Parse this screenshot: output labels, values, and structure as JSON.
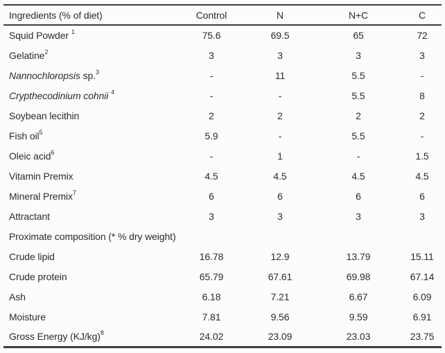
{
  "table": {
    "header": {
      "ingredients": "Ingredients (% of diet)",
      "columns": [
        "Control",
        "N",
        "N+C",
        "C"
      ]
    },
    "rows": [
      {
        "label": [
          {
            "text": "Squid Powder ",
            "style": "normal"
          },
          {
            "text": "1",
            "style": "sup"
          }
        ],
        "values": [
          "75.6",
          "69.5",
          "65",
          "72"
        ]
      },
      {
        "label": [
          {
            "text": "Gelatine",
            "style": "normal"
          },
          {
            "text": "2",
            "style": "sup"
          }
        ],
        "values": [
          "3",
          "3",
          "3",
          "3"
        ]
      },
      {
        "label": [
          {
            "text": "Nannochloropsis",
            "style": "italic"
          },
          {
            "text": " sp.",
            "style": "normal"
          },
          {
            "text": "3",
            "style": "sup"
          }
        ],
        "values": [
          "-",
          "11",
          "5.5",
          "-"
        ]
      },
      {
        "label": [
          {
            "text": "Crypthecodinium cohnii",
            "style": "italic"
          },
          {
            "text": " ",
            "style": "normal"
          },
          {
            "text": "4",
            "style": "sup"
          }
        ],
        "values": [
          "-",
          "-",
          "5.5",
          "8"
        ]
      },
      {
        "label": [
          {
            "text": "Soybean lecithin",
            "style": "normal"
          }
        ],
        "values": [
          "2",
          "2",
          "2",
          "2"
        ]
      },
      {
        "label": [
          {
            "text": "Fish oil",
            "style": "normal"
          },
          {
            "text": "5",
            "style": "sup"
          }
        ],
        "values": [
          "5.9",
          "-",
          "5.5",
          "-"
        ]
      },
      {
        "label": [
          {
            "text": "Oleic acid",
            "style": "normal"
          },
          {
            "text": "6",
            "style": "sup"
          }
        ],
        "values": [
          "-",
          "1",
          "-",
          "1.5"
        ]
      },
      {
        "label": [
          {
            "text": "Vitamin Premix",
            "style": "normal"
          }
        ],
        "values": [
          "4.5",
          "4.5",
          "4.5",
          "4.5"
        ]
      },
      {
        "label": [
          {
            "text": "Mineral Premix",
            "style": "normal"
          },
          {
            "text": "7",
            "style": "sup"
          }
        ],
        "values": [
          "6",
          "6",
          "6",
          "6"
        ]
      },
      {
        "label": [
          {
            "text": "Attractant",
            "style": "normal"
          }
        ],
        "values": [
          "3",
          "3",
          "3",
          "3"
        ]
      },
      {
        "label": [
          {
            "text": "Proximate composition (* % dry weight)",
            "style": "normal"
          }
        ],
        "values": [
          "",
          "",
          "",
          ""
        ],
        "section": true
      },
      {
        "label": [
          {
            "text": "Crude lipid",
            "style": "normal"
          }
        ],
        "values": [
          "16.78",
          "12.9",
          "13.79",
          "15.11"
        ]
      },
      {
        "label": [
          {
            "text": "Crude protein",
            "style": "normal"
          }
        ],
        "values": [
          "65.79",
          "67.61",
          "69.98",
          "67.14"
        ]
      },
      {
        "label": [
          {
            "text": "Ash",
            "style": "normal"
          }
        ],
        "values": [
          "6.18",
          "7.21",
          "6.67",
          "6.09"
        ]
      },
      {
        "label": [
          {
            "text": "Moisture",
            "style": "normal"
          }
        ],
        "values": [
          "7.81",
          "9.56",
          "9.59",
          "6.91"
        ]
      },
      {
        "label": [
          {
            "text": "Gross Energy (KJ/kg)",
            "style": "normal"
          },
          {
            "text": "8",
            "style": "sup"
          }
        ],
        "values": [
          "24.02",
          "23.09",
          "23.03",
          "23.75"
        ]
      }
    ]
  },
  "colors": {
    "rule": "#3d3d3d",
    "text": "#2b2b2b",
    "background": "#fcfcfc"
  }
}
